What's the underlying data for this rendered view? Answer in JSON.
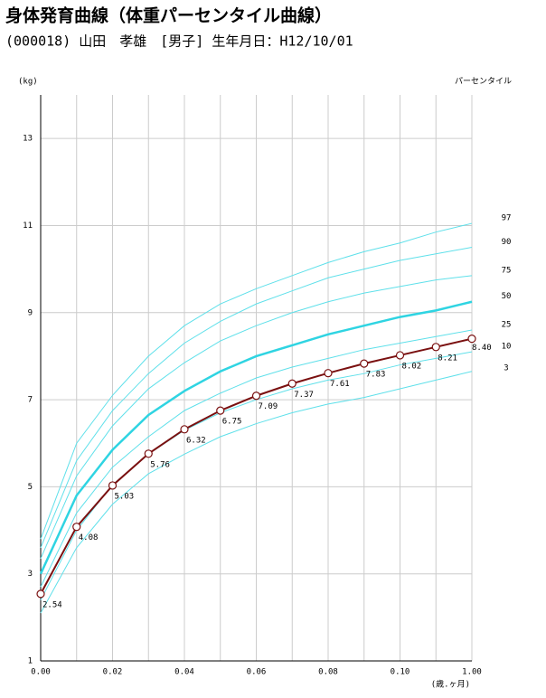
{
  "chart_data": {
    "type": "line",
    "title": "身体発育曲線（体重パーセンタイル曲線）",
    "subtitle": "(000018) 山田　孝雄　[男子] 生年月日：H12/10/01",
    "y_label": "(kg)",
    "x_label": "(歳.ヶ月)",
    "legend_title": "パーセンタイル",
    "x": [
      0,
      1,
      2,
      3,
      4,
      5,
      6,
      7,
      8,
      9,
      10,
      11,
      12
    ],
    "xlim": [
      0,
      12
    ],
    "ylim": [
      1,
      14
    ],
    "xticks": [
      {
        "value": 0,
        "label": "0.00"
      },
      {
        "value": 2,
        "label": "0.02"
      },
      {
        "value": 4,
        "label": "0.04"
      },
      {
        "value": 6,
        "label": "0.06"
      },
      {
        "value": 8,
        "label": "0.08"
      },
      {
        "value": 10,
        "label": "0.10"
      },
      {
        "value": 12,
        "label": "1.00"
      }
    ],
    "xminor": [
      1,
      3,
      5,
      7,
      9,
      11
    ],
    "yticks": [
      1,
      3,
      5,
      7,
      9,
      11,
      13
    ],
    "grid": true,
    "series": [
      {
        "name": "97",
        "color": "#5fe0ea",
        "values": [
          3.8,
          6.0,
          7.1,
          8.0,
          8.7,
          9.2,
          9.55,
          9.85,
          10.15,
          10.4,
          10.6,
          10.85,
          11.05
        ]
      },
      {
        "name": "90",
        "color": "#5fe0ea",
        "values": [
          3.6,
          5.6,
          6.75,
          7.6,
          8.3,
          8.8,
          9.2,
          9.5,
          9.8,
          10.0,
          10.2,
          10.35,
          10.5
        ]
      },
      {
        "name": "75",
        "color": "#5fe0ea",
        "values": [
          3.35,
          5.25,
          6.4,
          7.25,
          7.85,
          8.35,
          8.7,
          9.0,
          9.25,
          9.45,
          9.6,
          9.75,
          9.85
        ]
      },
      {
        "name": "50",
        "color": "#2fd4e2",
        "values": [
          3.0,
          4.8,
          5.85,
          6.65,
          7.2,
          7.65,
          8.0,
          8.25,
          8.5,
          8.7,
          8.9,
          9.05,
          9.25
        ]
      },
      {
        "name": "25",
        "color": "#5fe0ea",
        "values": [
          2.7,
          4.4,
          5.45,
          6.15,
          6.75,
          7.15,
          7.5,
          7.75,
          7.95,
          8.15,
          8.3,
          8.45,
          8.6
        ]
      },
      {
        "name": "10",
        "color": "#5fe0ea",
        "values": [
          2.4,
          4.0,
          5.05,
          5.75,
          6.3,
          6.7,
          7.0,
          7.25,
          7.45,
          7.6,
          7.8,
          7.95,
          8.1
        ]
      },
      {
        "name": "3",
        "color": "#5fe0ea",
        "values": [
          2.1,
          3.6,
          4.6,
          5.3,
          5.75,
          6.15,
          6.45,
          6.7,
          6.9,
          7.05,
          7.25,
          7.45,
          7.65
        ]
      },
      {
        "color": "#7a1010",
        "values": [
          2.54,
          4.08,
          5.03,
          5.76,
          6.32,
          6.75,
          7.09,
          7.37,
          7.61,
          7.83,
          8.02,
          8.21,
          8.4
        ],
        "value_labels": [
          "2.54",
          "4.08",
          "5.03",
          "5.76",
          "6.32",
          "6.75",
          "7.09",
          "7.37",
          "7.61",
          "7.83",
          "8.02",
          "8.21",
          "8.40"
        ]
      }
    ]
  }
}
